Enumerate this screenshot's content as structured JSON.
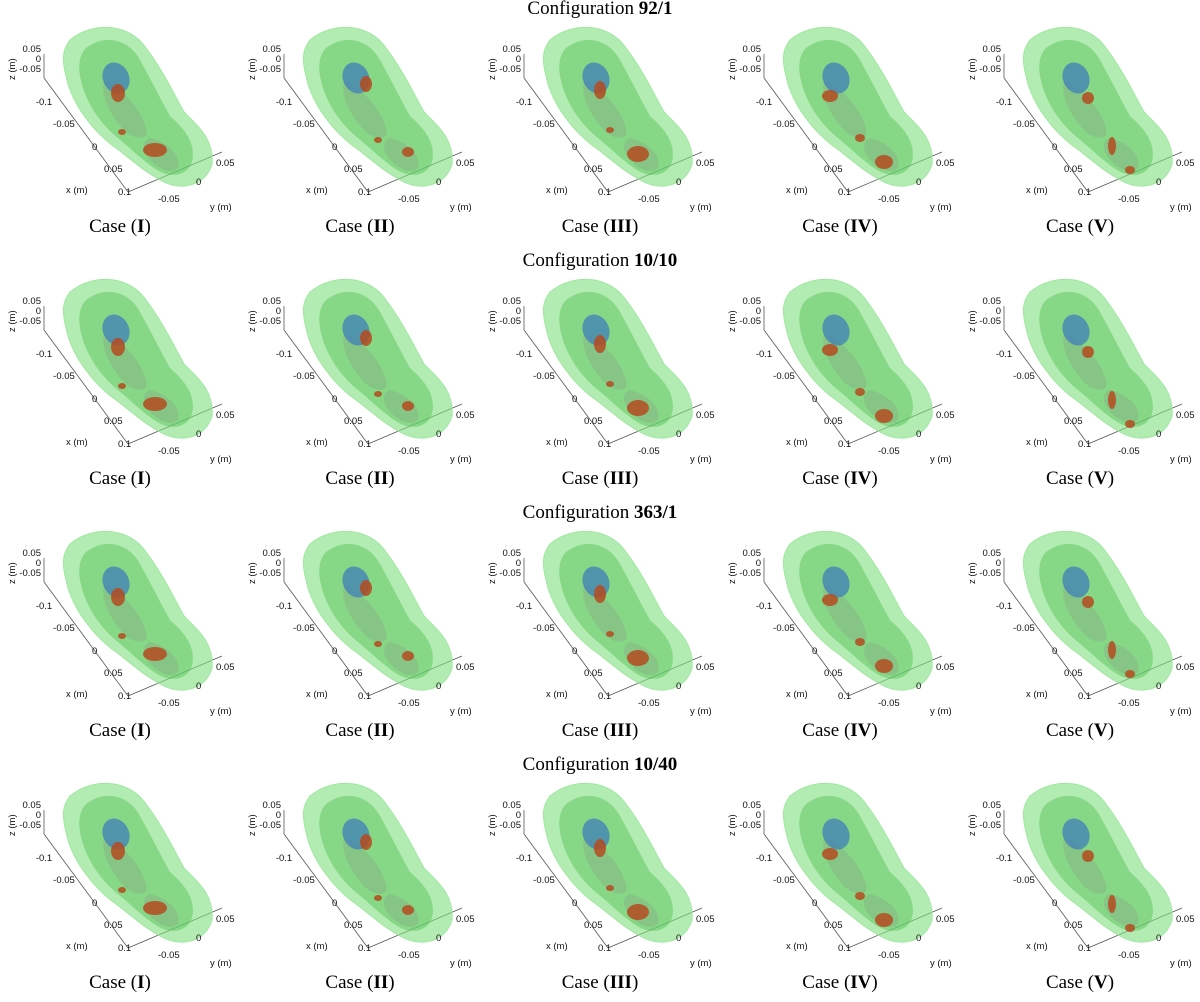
{
  "figure": {
    "configurations": [
      {
        "prefix": "Configuration ",
        "name": "92/1",
        "cases": [
          {
            "prefix": "Case (",
            "numeral": "I",
            "suffix": ")"
          },
          {
            "prefix": "Case (",
            "numeral": "II",
            "suffix": ")"
          },
          {
            "prefix": "Case (",
            "numeral": "III",
            "suffix": ")"
          },
          {
            "prefix": "Case (",
            "numeral": "IV",
            "suffix": ")"
          },
          {
            "prefix": "Case (",
            "numeral": "V",
            "suffix": ")"
          }
        ]
      },
      {
        "prefix": "Configuration ",
        "name": "10/10",
        "cases": [
          {
            "prefix": "Case (",
            "numeral": "I",
            "suffix": ")"
          },
          {
            "prefix": "Case (",
            "numeral": "II",
            "suffix": ")"
          },
          {
            "prefix": "Case (",
            "numeral": "III",
            "suffix": ")"
          },
          {
            "prefix": "Case (",
            "numeral": "IV",
            "suffix": ")"
          },
          {
            "prefix": "Case (",
            "numeral": "V",
            "suffix": ")"
          }
        ]
      },
      {
        "prefix": "Configuration ",
        "name": "363/1",
        "cases": [
          {
            "prefix": "Case (",
            "numeral": "I",
            "suffix": ")"
          },
          {
            "prefix": "Case (",
            "numeral": "II",
            "suffix": ")"
          },
          {
            "prefix": "Case (",
            "numeral": "III",
            "suffix": ")"
          },
          {
            "prefix": "Case (",
            "numeral": "IV",
            "suffix": ")"
          },
          {
            "prefix": "Case (",
            "numeral": "V",
            "suffix": ")"
          }
        ]
      },
      {
        "prefix": "Configuration ",
        "name": "10/40",
        "cases": [
          {
            "prefix": "Case (",
            "numeral": "I",
            "suffix": ")"
          },
          {
            "prefix": "Case (",
            "numeral": "II",
            "suffix": ")"
          },
          {
            "prefix": "Case (",
            "numeral": "III",
            "suffix": ")"
          },
          {
            "prefix": "Case (",
            "numeral": "IV",
            "suffix": ")"
          },
          {
            "prefix": "Case (",
            "numeral": "V",
            "suffix": ")"
          }
        ]
      }
    ],
    "axes": {
      "z_label": "z (m)",
      "z_ticks": [
        "0.05",
        "0",
        "-0.05"
      ],
      "x_label": "x (m)",
      "x_ticks": [
        "-0.1",
        "-0.05",
        "0",
        "0.05",
        "0.1"
      ],
      "y_label": "y (m)",
      "y_ticks": [
        "0.05",
        "0",
        "-0.05"
      ]
    },
    "colors": {
      "head_outer": "#7fe07f",
      "head_inner": "#4fc24f",
      "sphere": "#3f7fb8",
      "tissue": "#8a8a8a",
      "reconstruction": "#b54a1e"
    }
  }
}
